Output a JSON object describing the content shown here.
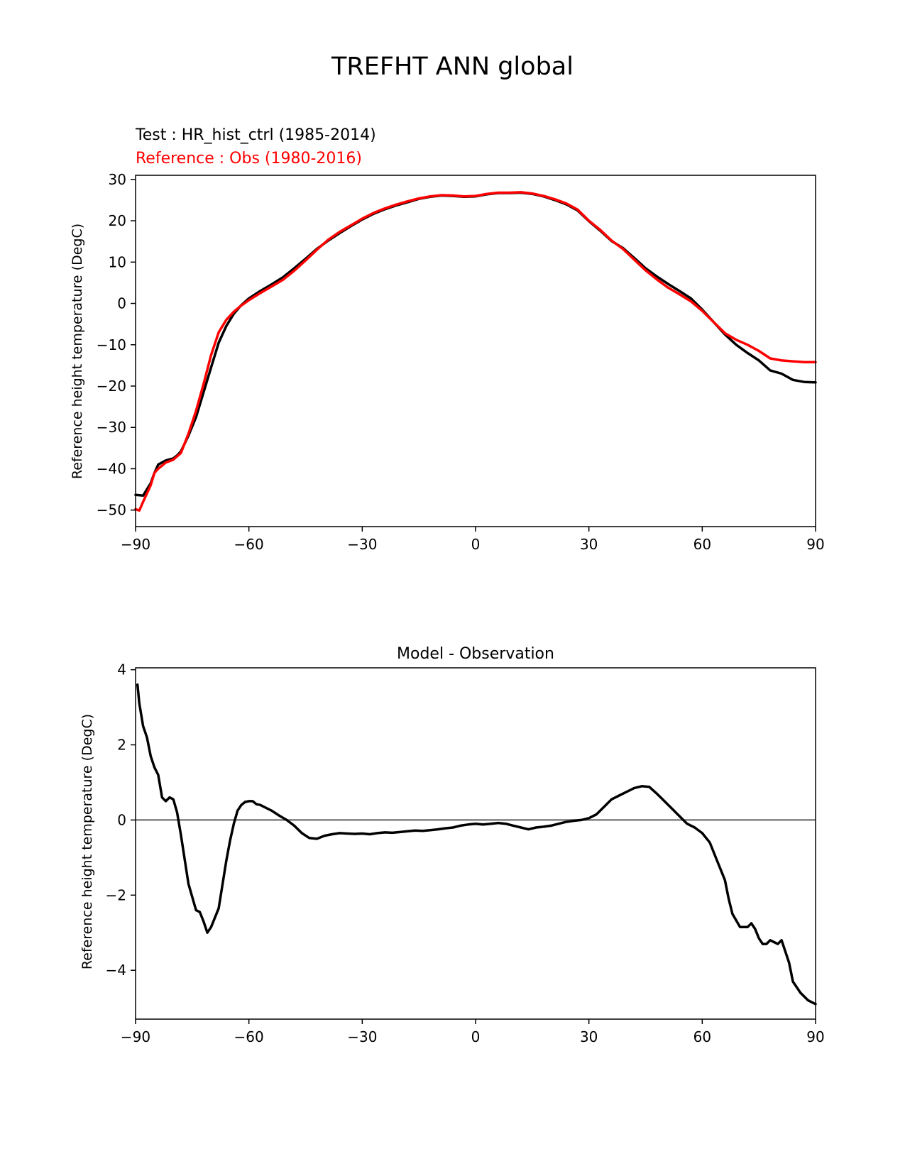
{
  "figure": {
    "suptitle": "TREFHT ANN global"
  },
  "chart_data": [
    {
      "type": "line",
      "test_label": "Test : HR_hist_ctrl (1985-2014)",
      "reference_label": "Reference : Obs (1980-2016)",
      "xlabel": "",
      "ylabel": "Reference height temperature (DegC)",
      "xlim": [
        -90,
        90
      ],
      "ylim": [
        -54,
        31
      ],
      "xticks": [
        -90,
        -60,
        -30,
        0,
        30,
        60,
        90
      ],
      "xtick_labels": [
        "−90",
        "−60",
        "−30",
        "0",
        "30",
        "60",
        "90"
      ],
      "yticks": [
        -50,
        -40,
        -30,
        -20,
        -10,
        0,
        10,
        20,
        30
      ],
      "ytick_labels": [
        "−50",
        "−40",
        "−30",
        "−20",
        "−10",
        "0",
        "10",
        "20",
        "30"
      ],
      "grid": false,
      "series": [
        {
          "role": "test",
          "color": "#000000",
          "x": [
            -90,
            -88,
            -86,
            -85,
            -84,
            -82,
            -80,
            -79,
            -78,
            -76,
            -74,
            -72,
            -70,
            -68,
            -66,
            -64,
            -62,
            -60,
            -57,
            -54,
            -51,
            -48,
            -45,
            -42,
            -39,
            -36,
            -33,
            -30,
            -27,
            -24,
            -21,
            -18,
            -15,
            -12,
            -9,
            -6,
            -3,
            0,
            3,
            6,
            9,
            12,
            15,
            18,
            21,
            24,
            27,
            30,
            33,
            36,
            39,
            42,
            45,
            48,
            51,
            54,
            57,
            60,
            63,
            66,
            69,
            72,
            75,
            78,
            81,
            84,
            87,
            90
          ],
          "y": [
            -46.3,
            -46.5,
            -43.5,
            -41,
            -39,
            -38,
            -37.5,
            -36.8,
            -35.8,
            -32,
            -27.5,
            -21.5,
            -15.5,
            -9.5,
            -5.5,
            -2.5,
            -0.4,
            1.2,
            3,
            4.6,
            6.3,
            8.5,
            10.8,
            13.2,
            15.2,
            17,
            18.7,
            20.3,
            21.7,
            22.8,
            23.7,
            24.5,
            25.3,
            25.8,
            26.1,
            26,
            25.8,
            25.9,
            26.4,
            26.7,
            26.7,
            26.8,
            26.5,
            25.9,
            25,
            24,
            22.5,
            19.9,
            17.6,
            15.1,
            13.4,
            11,
            8.5,
            6.5,
            4.7,
            3,
            1.2,
            -1.5,
            -4.5,
            -7.5,
            -10,
            -12,
            -13.8,
            -16.2,
            -17,
            -18.5,
            -19,
            -19.1
          ]
        },
        {
          "role": "reference",
          "color": "#ff0000",
          "x": [
            -90,
            -89,
            -88,
            -86,
            -85,
            -84,
            -82,
            -80,
            -78,
            -76,
            -74,
            -72,
            -70,
            -68,
            -66,
            -64,
            -62,
            -60,
            -57,
            -54,
            -51,
            -48,
            -45,
            -42,
            -39,
            -36,
            -33,
            -30,
            -27,
            -24,
            -21,
            -18,
            -15,
            -12,
            -9,
            -6,
            -3,
            0,
            3,
            6,
            9,
            12,
            15,
            18,
            21,
            24,
            27,
            30,
            33,
            36,
            39,
            42,
            45,
            48,
            51,
            54,
            57,
            60,
            63,
            66,
            69,
            72,
            75,
            78,
            81,
            84,
            87,
            90
          ],
          "y": [
            -49.8,
            -50.1,
            -48,
            -44,
            -41,
            -40,
            -38.5,
            -37.8,
            -36.2,
            -31.5,
            -26,
            -19.5,
            -12.5,
            -7,
            -4,
            -2,
            -0.5,
            0.8,
            2.5,
            4.1,
            5.7,
            7.9,
            10.4,
            13,
            15.4,
            17.3,
            18.9,
            20.5,
            21.9,
            23,
            23.9,
            24.7,
            25.4,
            25.9,
            26.2,
            26.1,
            25.9,
            26,
            26.5,
            26.8,
            26.8,
            26.9,
            26.6,
            26,
            25.2,
            24.2,
            22.7,
            20,
            17.8,
            15.2,
            13.2,
            10.6,
            8,
            5.8,
            3.8,
            2.2,
            0.5,
            -1.8,
            -4.5,
            -7.2,
            -8.8,
            -10,
            -11.5,
            -13.3,
            -13.8,
            -14,
            -14.2,
            -14.2
          ]
        }
      ]
    },
    {
      "type": "line",
      "title": "Model - Observation",
      "xlabel": "",
      "ylabel": "Reference height temperature (DegC)",
      "xlim": [
        -90,
        90
      ],
      "ylim": [
        -5.3,
        4.05
      ],
      "xticks": [
        -90,
        -60,
        -30,
        0,
        30,
        60,
        90
      ],
      "xtick_labels": [
        "−90",
        "−60",
        "−30",
        "0",
        "30",
        "60",
        "90"
      ],
      "yticks": [
        -4,
        -2,
        0,
        2,
        4
      ],
      "ytick_labels": [
        "−4",
        "−2",
        "0",
        "2",
        "4"
      ],
      "grid": false,
      "zero_line": {
        "value": 0,
        "color": "#808080"
      },
      "series": [
        {
          "role": "difference",
          "color": "#000000",
          "x": [
            -89.5,
            -89,
            -88,
            -87,
            -86,
            -85,
            -84,
            -83,
            -82,
            -81,
            -80,
            -79,
            -78,
            -76,
            -74,
            -73,
            -72,
            -71,
            -70,
            -68,
            -66,
            -65,
            -64,
            -63,
            -62,
            -61,
            -60,
            -59,
            -58,
            -57,
            -56,
            -54,
            -52,
            -50,
            -48,
            -46,
            -44,
            -42,
            -40,
            -38,
            -36,
            -34,
            -32,
            -30,
            -28,
            -26,
            -24,
            -22,
            -20,
            -18,
            -16,
            -14,
            -12,
            -10,
            -8,
            -6,
            -4,
            -2,
            0,
            2,
            4,
            6,
            8,
            10,
            12,
            14,
            16,
            18,
            20,
            22,
            24,
            26,
            28,
            30,
            32,
            34,
            36,
            38,
            40,
            42,
            44,
            46,
            48,
            50,
            52,
            54,
            56,
            58,
            60,
            62,
            64,
            66,
            67,
            68,
            70,
            72,
            73,
            74,
            75,
            76,
            77,
            78,
            79,
            80,
            81,
            82,
            83,
            84,
            86,
            88,
            90
          ],
          "y": [
            3.6,
            3.1,
            2.5,
            2.2,
            1.7,
            1.4,
            1.2,
            0.6,
            0.5,
            0.6,
            0.55,
            0.2,
            -0.4,
            -1.7,
            -2.4,
            -2.45,
            -2.7,
            -3,
            -2.85,
            -2.35,
            -1.1,
            -0.55,
            -0.1,
            0.25,
            0.4,
            0.48,
            0.5,
            0.5,
            0.42,
            0.4,
            0.35,
            0.25,
            0.12,
            0,
            -0.15,
            -0.35,
            -0.48,
            -0.5,
            -0.42,
            -0.38,
            -0.35,
            -0.36,
            -0.37,
            -0.36,
            -0.38,
            -0.35,
            -0.33,
            -0.34,
            -0.32,
            -0.3,
            -0.28,
            -0.29,
            -0.27,
            -0.25,
            -0.22,
            -0.2,
            -0.15,
            -0.12,
            -0.1,
            -0.12,
            -0.1,
            -0.08,
            -0.1,
            -0.15,
            -0.2,
            -0.25,
            -0.2,
            -0.18,
            -0.15,
            -0.1,
            -0.05,
            -0.02,
            0,
            0.05,
            0.15,
            0.35,
            0.55,
            0.65,
            0.75,
            0.85,
            0.9,
            0.88,
            0.7,
            0.5,
            0.3,
            0.1,
            -0.1,
            -0.2,
            -0.35,
            -0.6,
            -1.1,
            -1.6,
            -2.1,
            -2.5,
            -2.85,
            -2.85,
            -2.75,
            -2.9,
            -3.15,
            -3.3,
            -3.3,
            -3.2,
            -3.25,
            -3.3,
            -3.2,
            -3.5,
            -3.8,
            -4.3,
            -4.6,
            -4.8,
            -4.9
          ]
        }
      ]
    }
  ]
}
